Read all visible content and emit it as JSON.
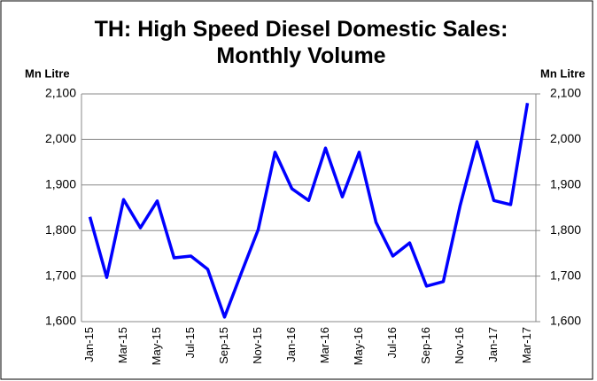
{
  "chart_data": {
    "type": "line",
    "title": "TH: High Speed Diesel Domestic Sales: Monthly Volume",
    "y_label": "Mn Litre",
    "y2_label": "Mn Litre",
    "categories": [
      "Jan-15",
      null,
      "Mar-15",
      null,
      "May-15",
      null,
      "Jul-15",
      null,
      "Sep-15",
      null,
      "Nov-15",
      null,
      "Jan-16",
      null,
      "Mar-16",
      null,
      "May-16",
      null,
      "Jul-16",
      null,
      "Sep-16",
      null,
      "Nov-16",
      null,
      "Jan-17",
      null,
      "Mar-17"
    ],
    "series": [
      {
        "color": "#0000ff",
        "values": [
          1830,
          1697,
          1868,
          1806,
          1865,
          1740,
          1744,
          1715,
          1610,
          1707,
          1802,
          1972,
          1892,
          1866,
          1981,
          1874,
          1972,
          1818,
          1744,
          1773,
          1678,
          1688,
          1855,
          1995,
          1866,
          1857,
          2080
        ]
      }
    ],
    "ylim": [
      1600,
      2100
    ],
    "yticks": [
      {
        "value": 1600,
        "label": "1,600"
      },
      {
        "value": 1700,
        "label": "1,700"
      },
      {
        "value": 1800,
        "label": "1,800"
      },
      {
        "value": 1900,
        "label": "1,900"
      },
      {
        "value": 2000,
        "label": "2,000"
      },
      {
        "value": 2100,
        "label": "2,100"
      }
    ],
    "y2lim": [
      1600,
      2100
    ],
    "y2ticks": [
      {
        "value": 1600,
        "label": "1,600"
      },
      {
        "value": 1700,
        "label": "1,700"
      },
      {
        "value": 1800,
        "label": "1,800"
      },
      {
        "value": 1900,
        "label": "1,900"
      },
      {
        "value": 2000,
        "label": "2,000"
      },
      {
        "value": 2100,
        "label": "2,100"
      }
    ],
    "grid": true
  }
}
